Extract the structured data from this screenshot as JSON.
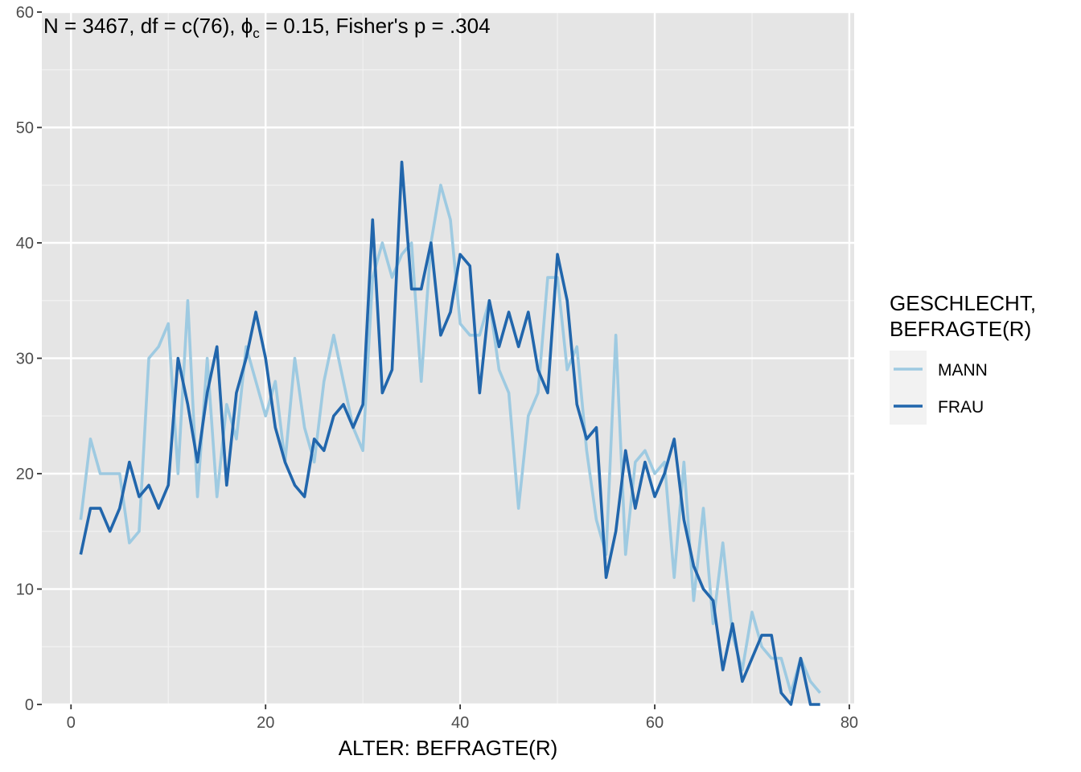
{
  "chart_data": {
    "type": "line",
    "xlabel": "ALTER: BEFRAGTE(R)",
    "ylabel": "",
    "xlim": [
      -3,
      80.5
    ],
    "ylim": [
      0,
      60
    ],
    "x_ticks": [
      0,
      20,
      40,
      60,
      80
    ],
    "y_ticks": [
      0,
      10,
      20,
      30,
      40,
      50,
      60
    ],
    "grid": true,
    "legend_position": "right",
    "legend_title_lines": [
      "GESCHLECHT,",
      "BEFRAGTE(R)"
    ],
    "annotation": {
      "main": "N = 3467,  df = c(76),  ",
      "phi": "ϕ",
      "phi_sub": "c",
      "rest": " = 0.15,  Fisher's p = .304"
    },
    "x": [
      1,
      2,
      3,
      4,
      5,
      6,
      7,
      8,
      9,
      10,
      11,
      12,
      13,
      14,
      15,
      16,
      17,
      18,
      19,
      20,
      21,
      22,
      23,
      24,
      25,
      26,
      27,
      28,
      29,
      30,
      31,
      32,
      33,
      34,
      35,
      36,
      37,
      38,
      39,
      40,
      41,
      42,
      43,
      44,
      45,
      46,
      47,
      48,
      49,
      50,
      51,
      52,
      53,
      54,
      55,
      56,
      57,
      58,
      59,
      60,
      61,
      62,
      63,
      64,
      65,
      66,
      67,
      68,
      69,
      70,
      71,
      72,
      73,
      74,
      75,
      76,
      77
    ],
    "series": [
      {
        "name": "MANN",
        "color": "#9ecae1",
        "values": [
          16,
          23,
          20,
          20,
          20,
          14,
          15,
          30,
          31,
          33,
          20,
          35,
          18,
          30,
          18,
          26,
          23,
          31,
          28,
          25,
          28,
          21,
          30,
          24,
          21,
          28,
          32,
          28,
          24,
          22,
          37,
          40,
          37,
          39,
          40,
          28,
          40,
          45,
          42,
          33,
          32,
          32,
          35,
          29,
          27,
          17,
          25,
          27,
          37,
          37,
          29,
          31,
          22,
          16,
          13,
          32,
          13,
          21,
          22,
          20,
          21,
          11,
          21,
          9,
          17,
          7,
          14,
          6,
          3,
          8,
          5,
          4,
          4,
          1,
          4,
          2,
          1
        ]
      },
      {
        "name": "FRAU",
        "color": "#2166ac",
        "values": [
          13,
          17,
          17,
          15,
          17,
          21,
          18,
          19,
          17,
          19,
          30,
          26,
          21,
          27,
          31,
          19,
          27,
          30,
          34,
          30,
          24,
          21,
          19,
          18,
          23,
          22,
          25,
          26,
          24,
          26,
          42,
          27,
          29,
          47,
          36,
          36,
          40,
          32,
          34,
          39,
          38,
          27,
          35,
          31,
          34,
          31,
          34,
          29,
          27,
          39,
          35,
          26,
          23,
          24,
          11,
          15,
          22,
          17,
          21,
          18,
          20,
          23,
          16,
          12,
          10,
          9,
          3,
          7,
          2,
          4,
          6,
          6,
          1,
          0,
          4,
          0,
          0
        ]
      }
    ]
  }
}
